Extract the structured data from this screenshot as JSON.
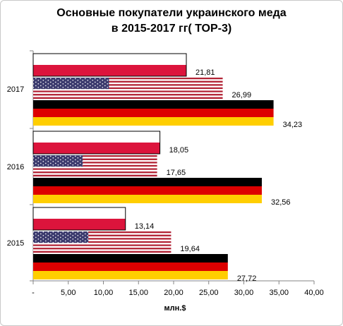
{
  "chart_data": {
    "type": "bar",
    "orientation": "horizontal",
    "title_lines": [
      "Основные покупатели украинского меда",
      "в 2015-2017 гг( ТОР-3)"
    ],
    "xlabel": "млн.$",
    "ylabel": "",
    "xlim": [
      0,
      40
    ],
    "x_ticks": [
      "-",
      "5,00",
      "10,00",
      "15,00",
      "20,00",
      "25,00",
      "30,00",
      "35,00",
      "40,00"
    ],
    "categories": [
      "2017",
      "2016",
      "2015"
    ],
    "series": [
      {
        "flag": "poland",
        "values": [
          21.81,
          18.05,
          13.14
        ],
        "labels": [
          "21,81",
          "18,05",
          "13,14"
        ]
      },
      {
        "flag": "usa",
        "values": [
          26.99,
          17.65,
          19.64
        ],
        "labels": [
          "26,99",
          "17,65",
          "19,64"
        ]
      },
      {
        "flag": "germany",
        "values": [
          34.23,
          32.56,
          27.72
        ],
        "labels": [
          "34,23",
          "32,56",
          "27,72"
        ]
      }
    ],
    "grid": false,
    "legend": "none",
    "colors": {
      "poland_white": "#ffffff",
      "poland_red": "#dc143c",
      "usa_blue": "#3c3b6e",
      "usa_red": "#b22234",
      "germany_black": "#000000",
      "germany_red": "#dd0000",
      "germany_gold": "#ffce00",
      "axis": "#868686"
    }
  }
}
